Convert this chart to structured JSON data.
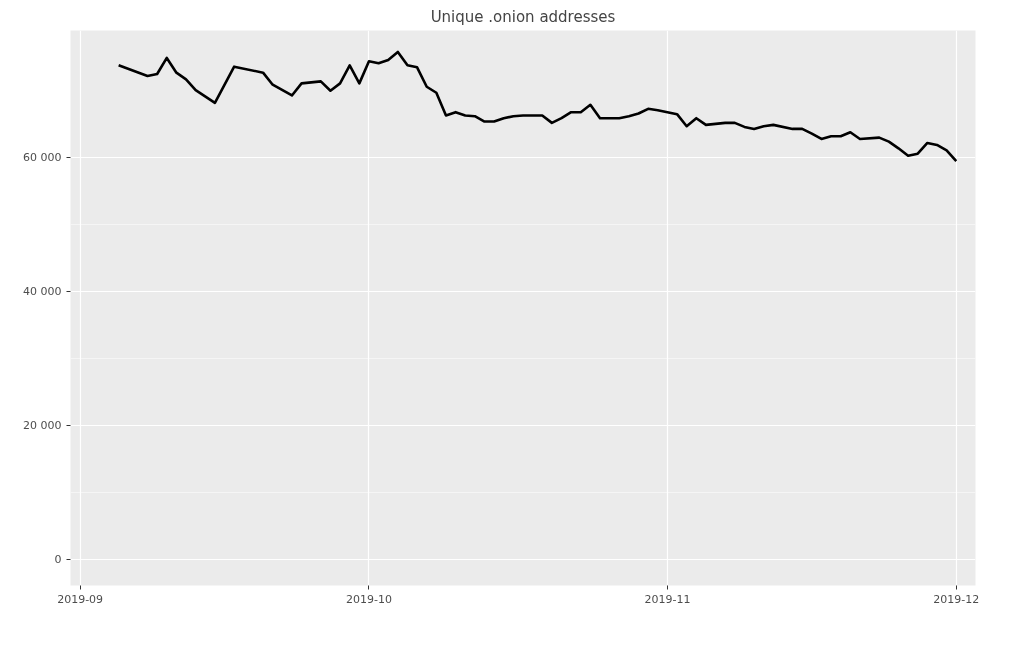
{
  "chart_data": {
    "type": "line",
    "title": "Unique .onion addresses",
    "x": [
      "2019-09-05",
      "2019-09-08",
      "2019-09-09",
      "2019-09-10",
      "2019-09-11",
      "2019-09-12",
      "2019-09-13",
      "2019-09-15",
      "2019-09-17",
      "2019-09-20",
      "2019-09-21",
      "2019-09-23",
      "2019-09-24",
      "2019-09-26",
      "2019-09-27",
      "2019-09-28",
      "2019-09-29",
      "2019-09-30",
      "2019-10-01",
      "2019-10-02",
      "2019-10-03",
      "2019-10-04",
      "2019-10-05",
      "2019-10-06",
      "2019-10-07",
      "2019-10-08",
      "2019-10-09",
      "2019-10-10",
      "2019-10-11",
      "2019-10-12",
      "2019-10-13",
      "2019-10-14",
      "2019-10-15",
      "2019-10-16",
      "2019-10-17",
      "2019-10-19",
      "2019-10-20",
      "2019-10-21",
      "2019-10-22",
      "2019-10-23",
      "2019-10-24",
      "2019-10-25",
      "2019-10-27",
      "2019-10-28",
      "2019-10-29",
      "2019-10-30",
      "2019-10-31",
      "2019-11-02",
      "2019-11-03",
      "2019-11-04",
      "2019-11-05",
      "2019-11-07",
      "2019-11-08",
      "2019-11-09",
      "2019-11-10",
      "2019-11-11",
      "2019-11-12",
      "2019-11-14",
      "2019-11-15",
      "2019-11-16",
      "2019-11-17",
      "2019-11-18",
      "2019-11-19",
      "2019-11-20",
      "2019-11-21",
      "2019-11-23",
      "2019-11-24",
      "2019-11-25",
      "2019-11-26",
      "2019-11-27",
      "2019-11-28",
      "2019-11-29",
      "2019-11-30",
      "2019-12-01"
    ],
    "series": [
      {
        "color": "#000000",
        "values": [
          73800,
          72200,
          72500,
          74900,
          72700,
          71700,
          70100,
          68200,
          73600,
          72700,
          70900,
          69300,
          71100,
          71400,
          70000,
          71100,
          73800,
          71100,
          74400,
          74100,
          74600,
          75800,
          73800,
          73500,
          70600,
          69700,
          66300,
          66800,
          66300,
          66200,
          65400,
          65400,
          65900,
          66200,
          66300,
          66300,
          65200,
          65900,
          66800,
          66800,
          67900,
          65900,
          65900,
          66200,
          66600,
          67300,
          67100,
          66500,
          64700,
          65900,
          64900,
          65200,
          65200,
          64600,
          64300,
          64700,
          64900,
          64300,
          64300,
          63600,
          62800,
          63200,
          63200,
          63800,
          62800,
          63000,
          62400,
          61400,
          60300,
          60600,
          62200,
          61900,
          61100,
          59500
        ]
      }
    ],
    "xlim": [
      "2019-08-31",
      "2019-12-03"
    ],
    "xticks": [
      {
        "value": "2019-09-01",
        "label": "2019-09"
      },
      {
        "value": "2019-10-01",
        "label": "2019-10"
      },
      {
        "value": "2019-11-01",
        "label": "2019-11"
      },
      {
        "value": "2019-12-01",
        "label": "2019-12"
      }
    ],
    "ylim": [
      -3900,
      79000
    ],
    "yticks": [
      0,
      {
        "value": 20000,
        "label": "20 000"
      },
      {
        "value": 40000,
        "label": "40 000"
      },
      {
        "value": 60000,
        "label": "60 000"
      }
    ],
    "grid": true,
    "marker": "none",
    "line_style": "solid"
  }
}
